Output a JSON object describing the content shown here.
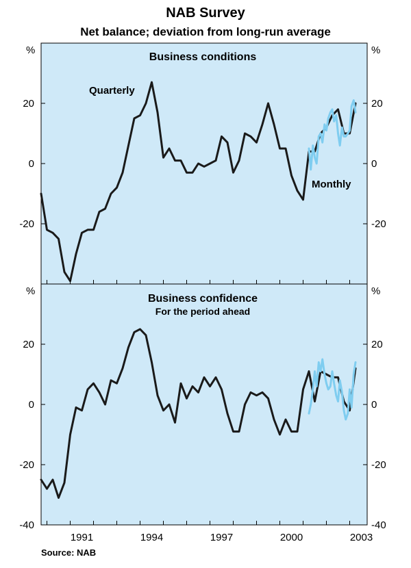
{
  "title": "NAB Survey",
  "subtitle": "Net balance; deviation from long-run average",
  "source": "Source: NAB",
  "colors": {
    "panel_bg": "#cfe9f8",
    "quarterly": "#1a1a1a",
    "monthly": "#7fcdf0",
    "border": "#000000"
  },
  "chart_data": [
    {
      "type": "line",
      "title": "Business conditions",
      "subtitle": "",
      "ylabel_left": "%",
      "ylabel_right": "%",
      "ylim": [
        -40,
        40
      ],
      "yticks": [
        20,
        0,
        -20
      ],
      "ytick_labels": [
        "20",
        "0",
        "-20"
      ],
      "xlim": [
        1989.75,
        2003.75
      ],
      "xticks": [
        1991,
        1994,
        1997,
        2000,
        2003
      ],
      "xtick_labels": [
        "1991",
        "1994",
        "1997",
        "2000",
        "2003"
      ],
      "annotations": [
        {
          "text": "Quarterly",
          "series": "Quarterly"
        },
        {
          "text": "Monthly",
          "series": "Monthly"
        }
      ],
      "series": [
        {
          "name": "Quarterly",
          "x": [
            1989.75,
            1990,
            1990.25,
            1990.5,
            1990.75,
            1991,
            1991.25,
            1991.5,
            1991.75,
            1992,
            1992.25,
            1992.5,
            1992.75,
            1993,
            1993.25,
            1993.5,
            1993.75,
            1994,
            1994.25,
            1994.5,
            1994.75,
            1995,
            1995.25,
            1995.5,
            1995.75,
            1996,
            1996.25,
            1996.5,
            1996.75,
            1997,
            1997.25,
            1997.5,
            1997.75,
            1998,
            1998.25,
            1998.5,
            1998.75,
            1999,
            1999.25,
            1999.5,
            1999.75,
            2000,
            2000.25,
            2000.5,
            2000.75,
            2001,
            2001.25,
            2001.5,
            2001.75,
            2002,
            2002.25,
            2002.5,
            2002.75,
            2003,
            2003.25
          ],
          "values": [
            -10,
            -22,
            -23,
            -25,
            -36,
            -39,
            -30,
            -23,
            -22,
            -22,
            -16,
            -15,
            -10,
            -8,
            -3,
            6,
            15,
            16,
            20,
            27,
            17,
            2,
            5,
            1,
            1,
            -3,
            -3,
            0,
            -1,
            0,
            1,
            9,
            7,
            -3,
            1,
            10,
            9,
            7,
            13,
            20,
            13,
            5,
            5,
            -4,
            -9,
            -12,
            4,
            4,
            10,
            12,
            16,
            18,
            10,
            10,
            20
          ]
        },
        {
          "name": "Monthly",
          "x": [
            2001.25,
            2001.33,
            2001.42,
            2001.5,
            2001.58,
            2001.67,
            2001.75,
            2001.83,
            2001.92,
            2002,
            2002.08,
            2002.17,
            2002.25,
            2002.33,
            2002.42,
            2002.5,
            2002.58,
            2002.67,
            2002.75,
            2002.83,
            2002.92,
            2003,
            2003.08,
            2003.17,
            2003.25
          ],
          "values": [
            5,
            -2,
            6,
            2,
            0,
            9,
            10,
            7,
            13,
            11,
            15,
            17,
            18,
            14,
            16,
            10,
            6,
            12,
            9,
            9,
            10,
            11,
            19,
            21,
            17
          ]
        }
      ]
    },
    {
      "type": "line",
      "title": "Business confidence",
      "subtitle": "For the period ahead",
      "ylabel_left": "%",
      "ylabel_right": "%",
      "ylim": [
        -40,
        40
      ],
      "yticks": [
        20,
        0,
        -20,
        -40
      ],
      "ytick_labels": [
        "20",
        "0",
        "-20",
        "-40"
      ],
      "xlim": [
        1989.75,
        2003.75
      ],
      "xticks": [
        1991,
        1994,
        1997,
        2000,
        2003
      ],
      "xtick_labels": [
        "1991",
        "1994",
        "1997",
        "2000",
        "2003"
      ],
      "annotations": [],
      "series": [
        {
          "name": "Quarterly",
          "x": [
            1989.75,
            1990,
            1990.25,
            1990.5,
            1990.75,
            1991,
            1991.25,
            1991.5,
            1991.75,
            1992,
            1992.25,
            1992.5,
            1992.75,
            1993,
            1993.25,
            1993.5,
            1993.75,
            1994,
            1994.25,
            1994.5,
            1994.75,
            1995,
            1995.25,
            1995.5,
            1995.75,
            1996,
            1996.25,
            1996.5,
            1996.75,
            1997,
            1997.25,
            1997.5,
            1997.75,
            1998,
            1998.25,
            1998.5,
            1998.75,
            1999,
            1999.25,
            1999.5,
            1999.75,
            2000,
            2000.25,
            2000.5,
            2000.75,
            2001,
            2001.25,
            2001.5,
            2001.75,
            2002,
            2002.25,
            2002.5,
            2002.75,
            2003,
            2003.25
          ],
          "values": [
            -25,
            -28,
            -25,
            -31,
            -26,
            -10,
            -1,
            -2,
            5,
            7,
            4,
            0,
            8,
            7,
            12,
            19,
            24,
            25,
            23,
            14,
            3,
            -2,
            0,
            -6,
            7,
            2,
            6,
            4,
            9,
            6,
            9,
            5,
            -3,
            -9,
            -9,
            0,
            4,
            3,
            4,
            2,
            -5,
            -10,
            -5,
            -9,
            -9,
            5,
            11,
            1,
            11,
            10,
            9,
            9,
            1,
            -2,
            12
          ]
        },
        {
          "name": "Monthly",
          "x": [
            2001.25,
            2001.33,
            2001.42,
            2001.5,
            2001.58,
            2001.67,
            2001.75,
            2001.83,
            2001.92,
            2002,
            2002.08,
            2002.17,
            2002.25,
            2002.33,
            2002.42,
            2002.5,
            2002.58,
            2002.67,
            2002.75,
            2002.83,
            2002.92,
            2003,
            2003.08,
            2003.17,
            2003.25
          ],
          "values": [
            -3,
            0,
            5,
            11,
            6,
            14,
            11,
            15,
            10,
            7,
            5,
            6,
            11,
            7,
            3,
            1,
            8,
            4,
            -2,
            -5,
            -3,
            5,
            -1,
            10,
            14
          ]
        }
      ]
    }
  ]
}
